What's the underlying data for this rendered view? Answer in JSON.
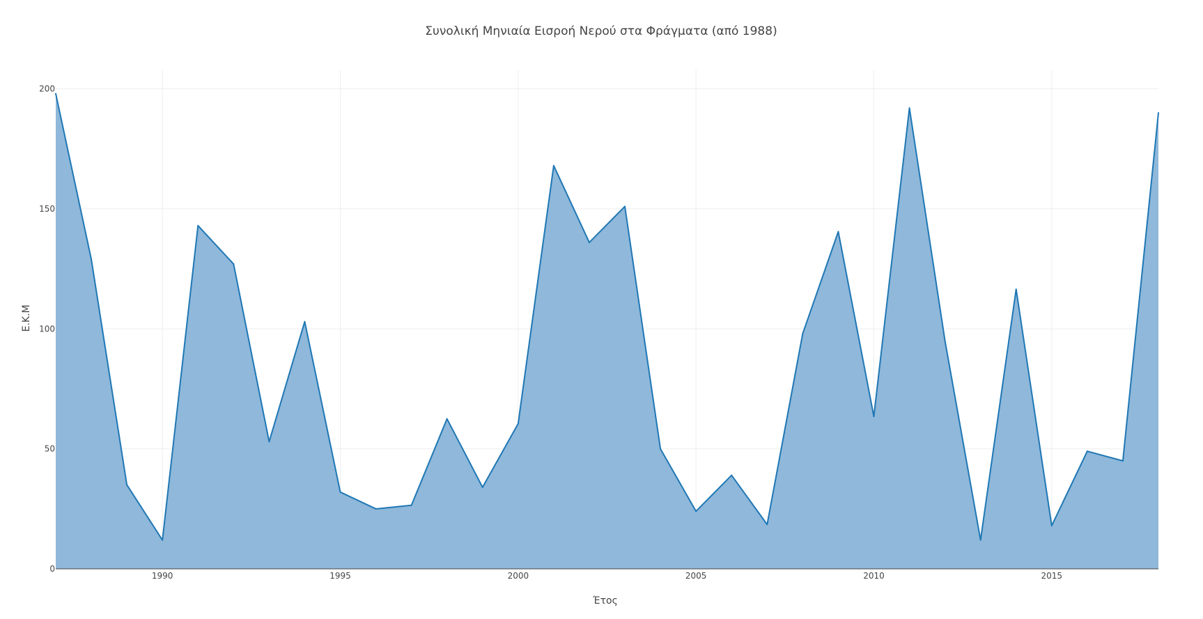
{
  "chart_data": {
    "type": "area",
    "title": "Συνολική Μηνιαία Εισροή Νερού στα Φράγματα (από 1988)",
    "xlabel": "Έτος",
    "ylabel": "Ε.Κ.Μ",
    "xlim": [
      1987,
      2018
    ],
    "ylim": [
      0,
      208
    ],
    "x_ticks": [
      1990,
      1995,
      2000,
      2005,
      2010,
      2015
    ],
    "y_ticks": [
      0,
      50,
      100,
      150,
      200
    ],
    "grid": true,
    "series": [
      {
        "color": "#1f77b4",
        "fill_color": "#8fb8da",
        "x": [
          1987,
          1988,
          1989,
          1990,
          1991,
          1992,
          1993,
          1994,
          1995,
          1996,
          1997,
          1998,
          1999,
          2000,
          2001,
          2002,
          2003,
          2004,
          2005,
          2006,
          2007,
          2008,
          2009,
          2010,
          2011,
          2012,
          2013,
          2014,
          2015,
          2016,
          2017,
          2018
        ],
        "y": [
          198,
          129,
          35,
          12,
          143,
          127,
          53,
          103,
          32,
          25,
          26.5,
          62.5,
          34,
          60.5,
          168,
          136,
          151,
          50,
          24,
          39,
          18.5,
          98,
          140.5,
          63.5,
          192,
          95,
          12,
          116.5,
          18,
          49,
          45,
          190
        ]
      }
    ]
  }
}
